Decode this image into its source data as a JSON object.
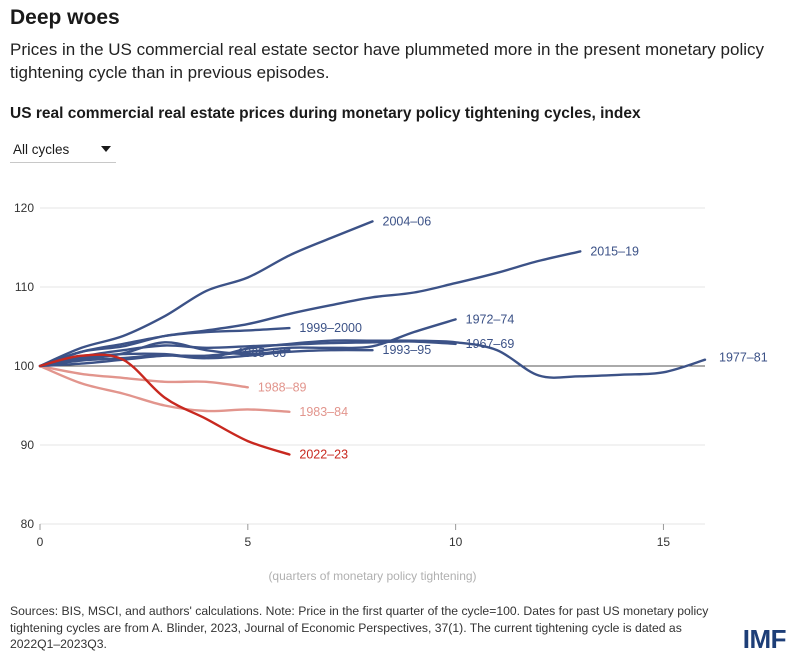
{
  "header": {
    "headline": "Deep woes",
    "subtitle": "Prices in the US commercial real estate sector have plummeted more in the present monetary policy tightening cycle than in previous episodes.",
    "chart_title": "US real commercial real estate prices during monetary policy tightening cycles, index"
  },
  "controls": {
    "cycle_select": "All cycles"
  },
  "footer": {
    "source": "Sources: BIS, MSCI, and authors' calculations. Note: Price in the first quarter of the cycle=100. Dates for past US monetary policy tightening cycles are from A. Blinder, 2023, Journal of Economic Perspectives, 37(1). The current tightening cycle is dated as 2022Q1–2023Q3.",
    "logo": "IMF"
  },
  "colors": {
    "past_cycle": "#3c5287",
    "decline_cycle": "#e2958d",
    "current_cycle": "#c8281f",
    "baseline": "#555555",
    "grid": "#e6e6e6"
  },
  "chart_data": {
    "type": "line",
    "title": "US real commercial real estate prices during monetary policy tightening cycles, index",
    "xlabel": "(quarters of monetary policy tightening)",
    "ylabel": "",
    "xlim": [
      0,
      16
    ],
    "ylim": [
      80,
      120
    ],
    "xticks": [
      0,
      5,
      10,
      15
    ],
    "yticks": [
      80,
      90,
      100,
      110,
      120
    ],
    "baseline": 100,
    "grid": true,
    "legend": "direct labels at line ends",
    "series": [
      {
        "name": "2004–06",
        "group": "past",
        "x": [
          0,
          1,
          2,
          3,
          4,
          5,
          6,
          7,
          8
        ],
        "y": [
          100,
          102.3,
          103.8,
          106.3,
          109.5,
          111.2,
          114.0,
          116.2,
          118.3
        ]
      },
      {
        "name": "2015–19",
        "group": "past",
        "x": [
          0,
          1,
          2,
          3,
          4,
          5,
          6,
          7,
          8,
          9,
          10,
          11,
          12,
          13
        ],
        "y": [
          100,
          101.8,
          102.8,
          103.8,
          104.5,
          105.3,
          106.6,
          107.7,
          108.7,
          109.3,
          110.5,
          111.8,
          113.3,
          114.5
        ]
      },
      {
        "name": "1972–74",
        "group": "past",
        "x": [
          0,
          1,
          2,
          3,
          4,
          5,
          6,
          7,
          8,
          9,
          10
        ],
        "y": [
          100,
          100.3,
          100.8,
          101.3,
          101.3,
          101.8,
          102.3,
          102.3,
          102.5,
          104.3,
          105.9
        ]
      },
      {
        "name": "1999–2000",
        "group": "past",
        "x": [
          0,
          1,
          2,
          3,
          4,
          5,
          6
        ],
        "y": [
          100,
          101.8,
          102.5,
          103.8,
          104.3,
          104.5,
          104.8
        ]
      },
      {
        "name": "1967–69",
        "group": "past",
        "x": [
          0,
          1,
          2,
          3,
          4,
          5,
          6,
          7,
          8,
          9,
          10
        ],
        "y": [
          100,
          101.2,
          102.0,
          102.6,
          102.3,
          102.5,
          102.7,
          102.9,
          103.0,
          103.1,
          102.8
        ]
      },
      {
        "name": "1965–66",
        "group": "past",
        "x": [
          0,
          1,
          2,
          3,
          4,
          5,
          6
        ],
        "y": [
          100,
          100.8,
          101.6,
          103.0,
          102.0,
          101.5,
          102.0
        ]
      },
      {
        "name": "1993–95",
        "group": "past",
        "x": [
          0,
          1,
          2,
          3,
          4,
          5,
          6,
          7,
          8
        ],
        "y": [
          100,
          101.0,
          101.5,
          101.5,
          101.0,
          101.3,
          101.8,
          102.0,
          102.0
        ]
      },
      {
        "name": "1977–81",
        "group": "past",
        "x": [
          0,
          1,
          2,
          3,
          4,
          5,
          6,
          7,
          8,
          9,
          10,
          11,
          12,
          13,
          14,
          15,
          16
        ],
        "y": [
          100,
          100.7,
          101.0,
          101.4,
          101.0,
          102.2,
          102.8,
          103.2,
          103.2,
          103.2,
          103.0,
          102.0,
          98.8,
          98.7,
          98.9,
          99.2,
          100.8
        ]
      },
      {
        "name": "1988–89",
        "group": "decline",
        "x": [
          0,
          1,
          2,
          3,
          4,
          5
        ],
        "y": [
          100,
          99.0,
          98.5,
          98.0,
          98.0,
          97.3
        ]
      },
      {
        "name": "1983–84",
        "group": "decline",
        "x": [
          0,
          1,
          2,
          3,
          4,
          5,
          6
        ],
        "y": [
          100,
          97.8,
          96.5,
          95.0,
          94.3,
          94.5,
          94.2
        ]
      },
      {
        "name": "2022–23",
        "group": "current",
        "x": [
          0,
          1,
          2,
          3,
          4,
          5,
          6
        ],
        "y": [
          100,
          101.3,
          100.8,
          96.0,
          93.3,
          90.5,
          88.8
        ]
      }
    ]
  }
}
